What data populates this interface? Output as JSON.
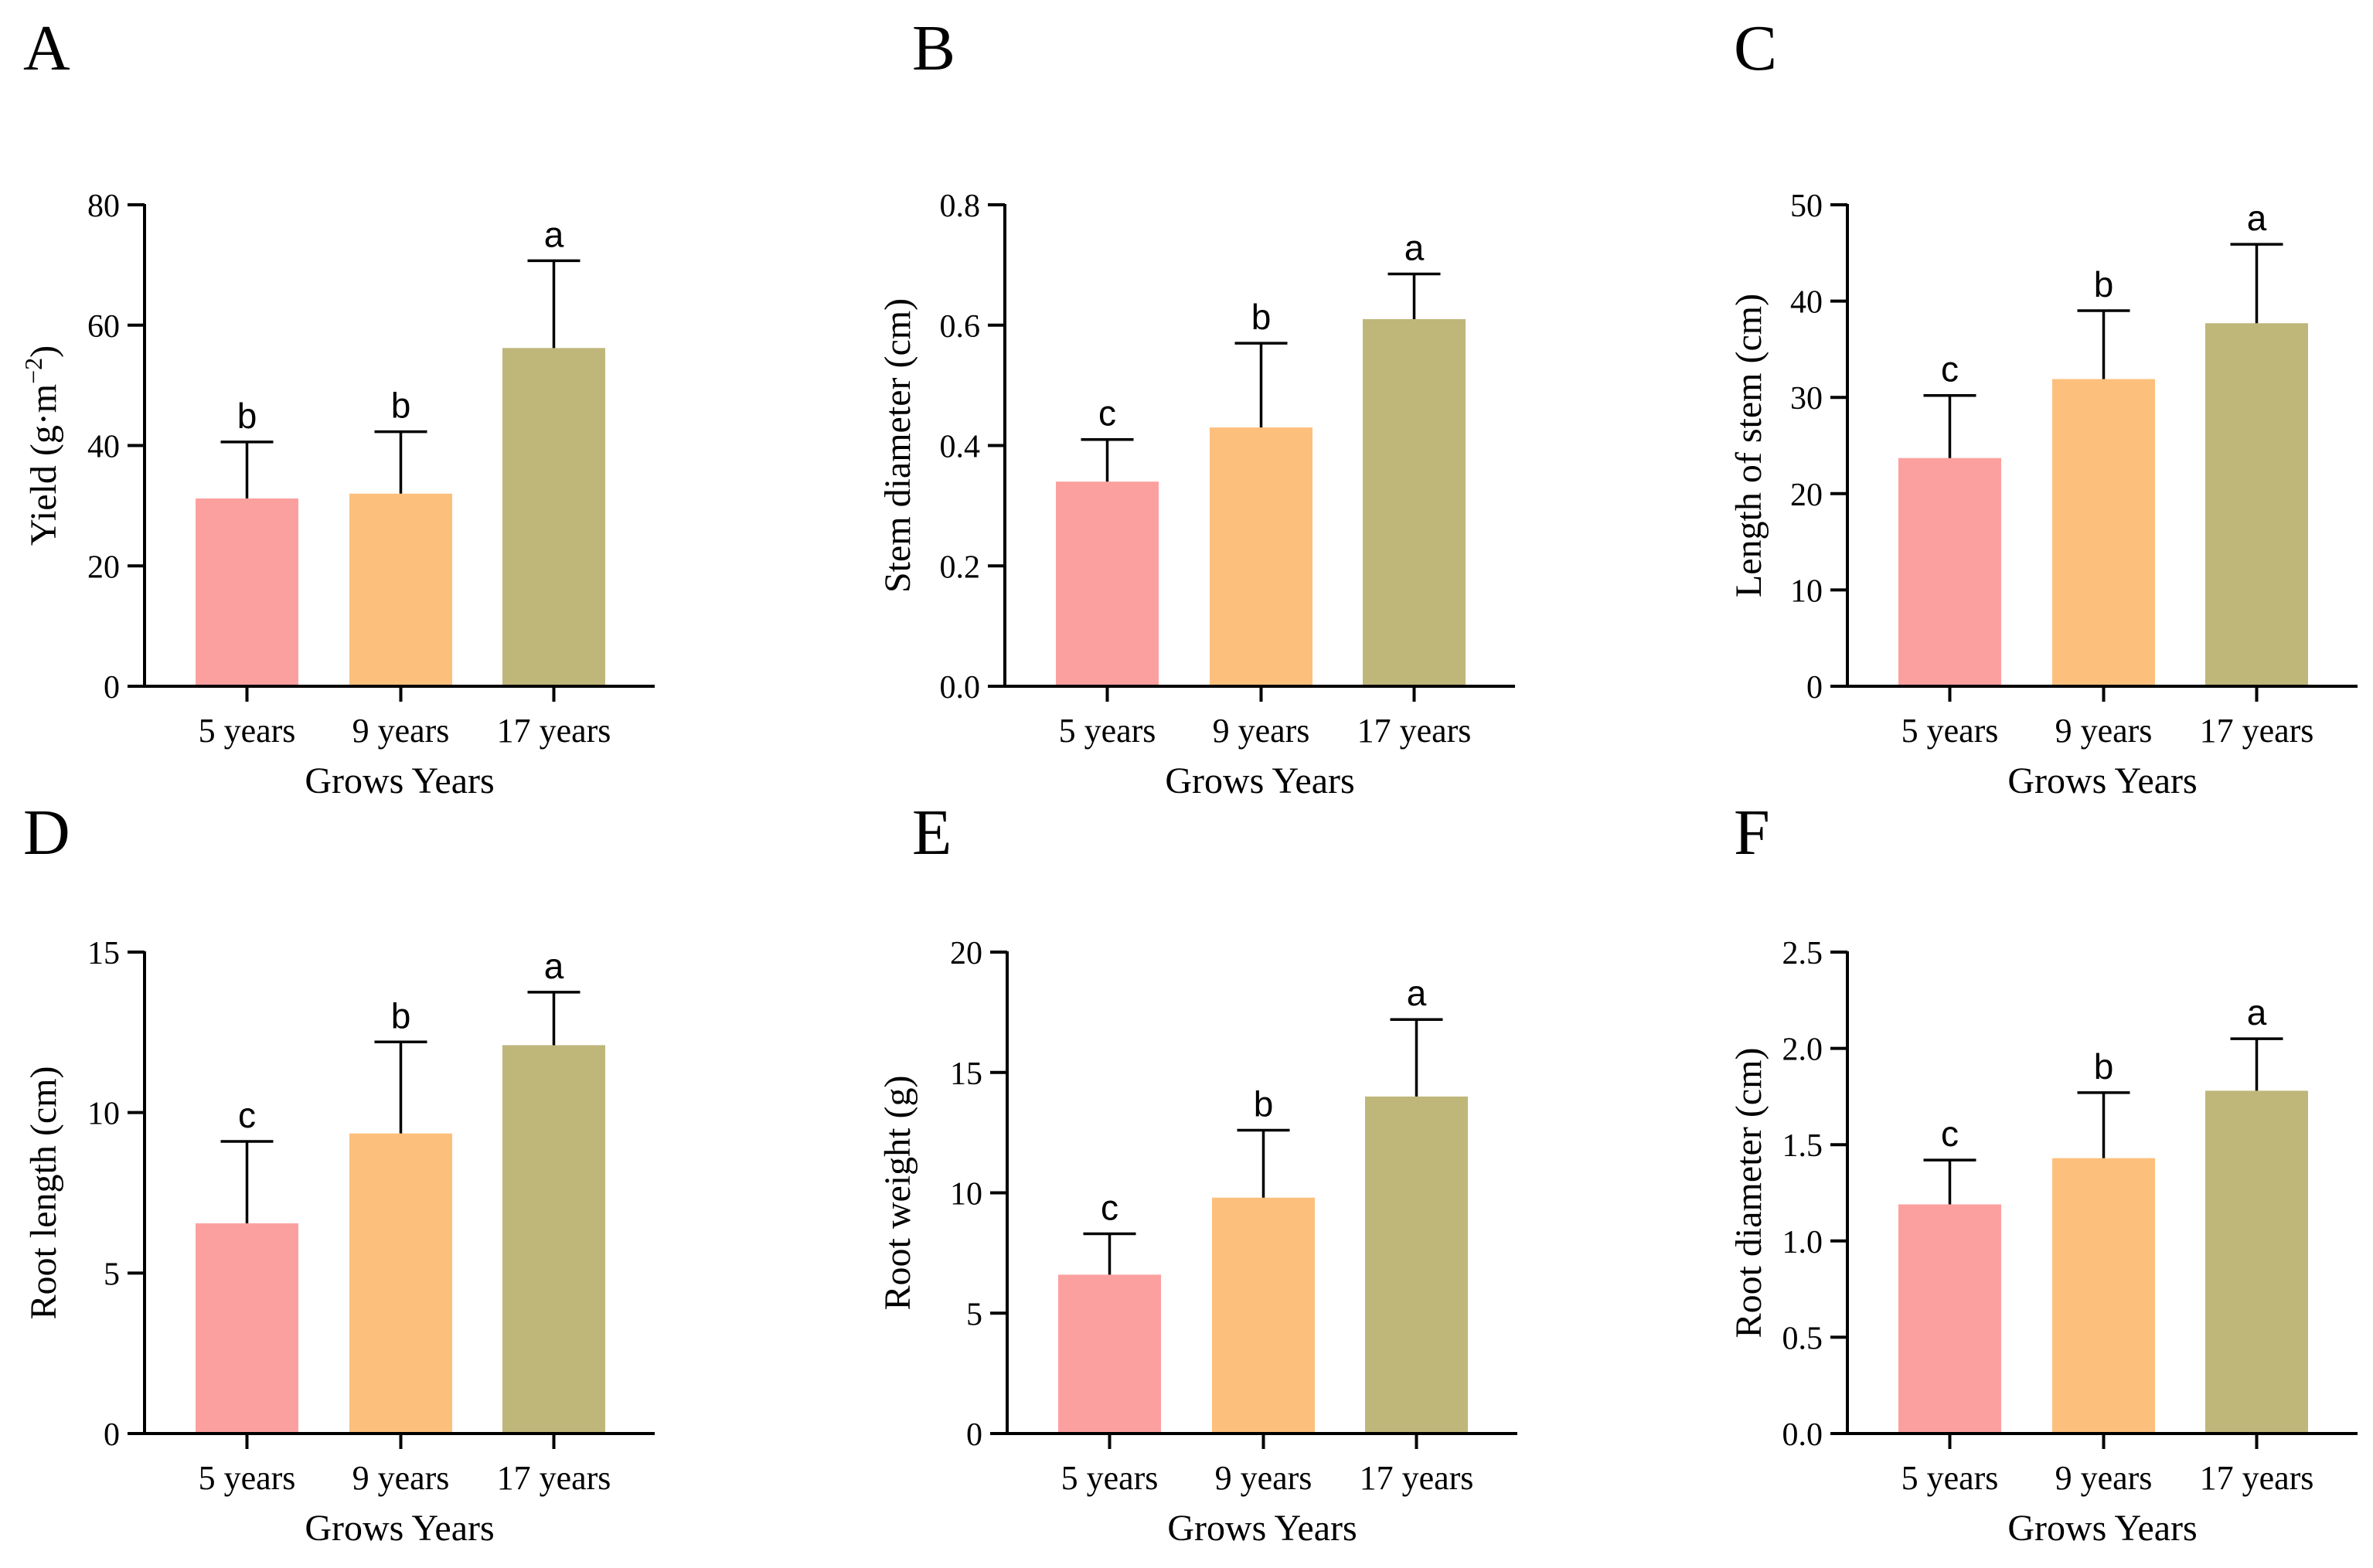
{
  "figure": {
    "bar_colors": [
      "#fca09f",
      "#fdbf7c",
      "#bfb67a"
    ],
    "axis_color": "#000000"
  },
  "chart_data": [
    {
      "panel": "A",
      "type": "bar",
      "categories": [
        "5 years",
        "9 years",
        "17 years"
      ],
      "values": [
        31.2,
        32.0,
        56.2
      ],
      "errors": [
        9.4,
        10.3,
        14.5
      ],
      "significance": [
        "b",
        "b",
        "a"
      ],
      "xlabel": "Grows Years",
      "ylabel": "Yield (g·m",
      "ylabel_sup": "−2",
      "ylabel_suffix": ")",
      "ylim": [
        0,
        80
      ],
      "ticks": [
        0,
        20,
        40,
        60,
        80
      ],
      "tick_labels": [
        "0",
        "20",
        "40",
        "60",
        "80"
      ]
    },
    {
      "panel": "B",
      "type": "bar",
      "categories": [
        "5 years",
        "9 years",
        "17 years"
      ],
      "values": [
        0.34,
        0.43,
        0.61
      ],
      "errors": [
        0.07,
        0.14,
        0.075
      ],
      "significance": [
        "c",
        "b",
        "a"
      ],
      "xlabel": "Grows Years",
      "ylabel": "Stem diameter (cm)",
      "ylim": [
        0,
        0.8
      ],
      "ticks": [
        0,
        0.2,
        0.4,
        0.6,
        0.8
      ],
      "tick_labels": [
        "0.0",
        "0.2",
        "0.4",
        "0.6",
        "0.8"
      ]
    },
    {
      "panel": "C",
      "type": "bar",
      "categories": [
        "5 years",
        "9 years",
        "17 years"
      ],
      "values": [
        23.7,
        31.9,
        37.7
      ],
      "errors": [
        6.5,
        7.1,
        8.2
      ],
      "significance": [
        "c",
        "b",
        "a"
      ],
      "xlabel": "Grows Years",
      "ylabel": "Length of stem (cm)",
      "ylim": [
        0,
        50
      ],
      "ticks": [
        0,
        10,
        20,
        30,
        40,
        50
      ],
      "tick_labels": [
        "0",
        "10",
        "20",
        "30",
        "40",
        "50"
      ]
    },
    {
      "panel": "D",
      "type": "bar",
      "categories": [
        "5 years",
        "9 years",
        "17 years"
      ],
      "values": [
        6.55,
        9.35,
        12.1
      ],
      "errors": [
        2.55,
        2.85,
        1.65
      ],
      "significance": [
        "c",
        "b",
        "a"
      ],
      "xlabel": "Grows Years",
      "ylabel": "Root length (cm)",
      "ylim": [
        0,
        15
      ],
      "ticks": [
        0,
        5,
        10,
        15
      ],
      "tick_labels": [
        "0",
        "5",
        "10",
        "15"
      ]
    },
    {
      "panel": "E",
      "type": "bar",
      "categories": [
        "5 years",
        "9 years",
        "17 years"
      ],
      "values": [
        6.6,
        9.8,
        14.0
      ],
      "errors": [
        1.7,
        2.8,
        3.2
      ],
      "significance": [
        "c",
        "b",
        "a"
      ],
      "xlabel": "Grows Years",
      "ylabel": "Root weight (g)",
      "ylim": [
        0,
        20
      ],
      "ticks": [
        0,
        5,
        10,
        15,
        20
      ],
      "tick_labels": [
        "0",
        "5",
        "10",
        "15",
        "20"
      ]
    },
    {
      "panel": "F",
      "type": "bar",
      "categories": [
        "5 years",
        "9 years",
        "17 years"
      ],
      "values": [
        1.19,
        1.43,
        1.78
      ],
      "errors": [
        0.23,
        0.34,
        0.27
      ],
      "significance": [
        "c",
        "b",
        "a"
      ],
      "xlabel": "Grows Years",
      "ylabel": "Root diameter (cm)",
      "ylim": [
        0,
        2.5
      ],
      "ticks": [
        0,
        0.5,
        1.0,
        1.5,
        2.0,
        2.5
      ],
      "tick_labels": [
        "0.0",
        "0.5",
        "1.0",
        "1.5",
        "2.0",
        "2.5"
      ]
    }
  ]
}
